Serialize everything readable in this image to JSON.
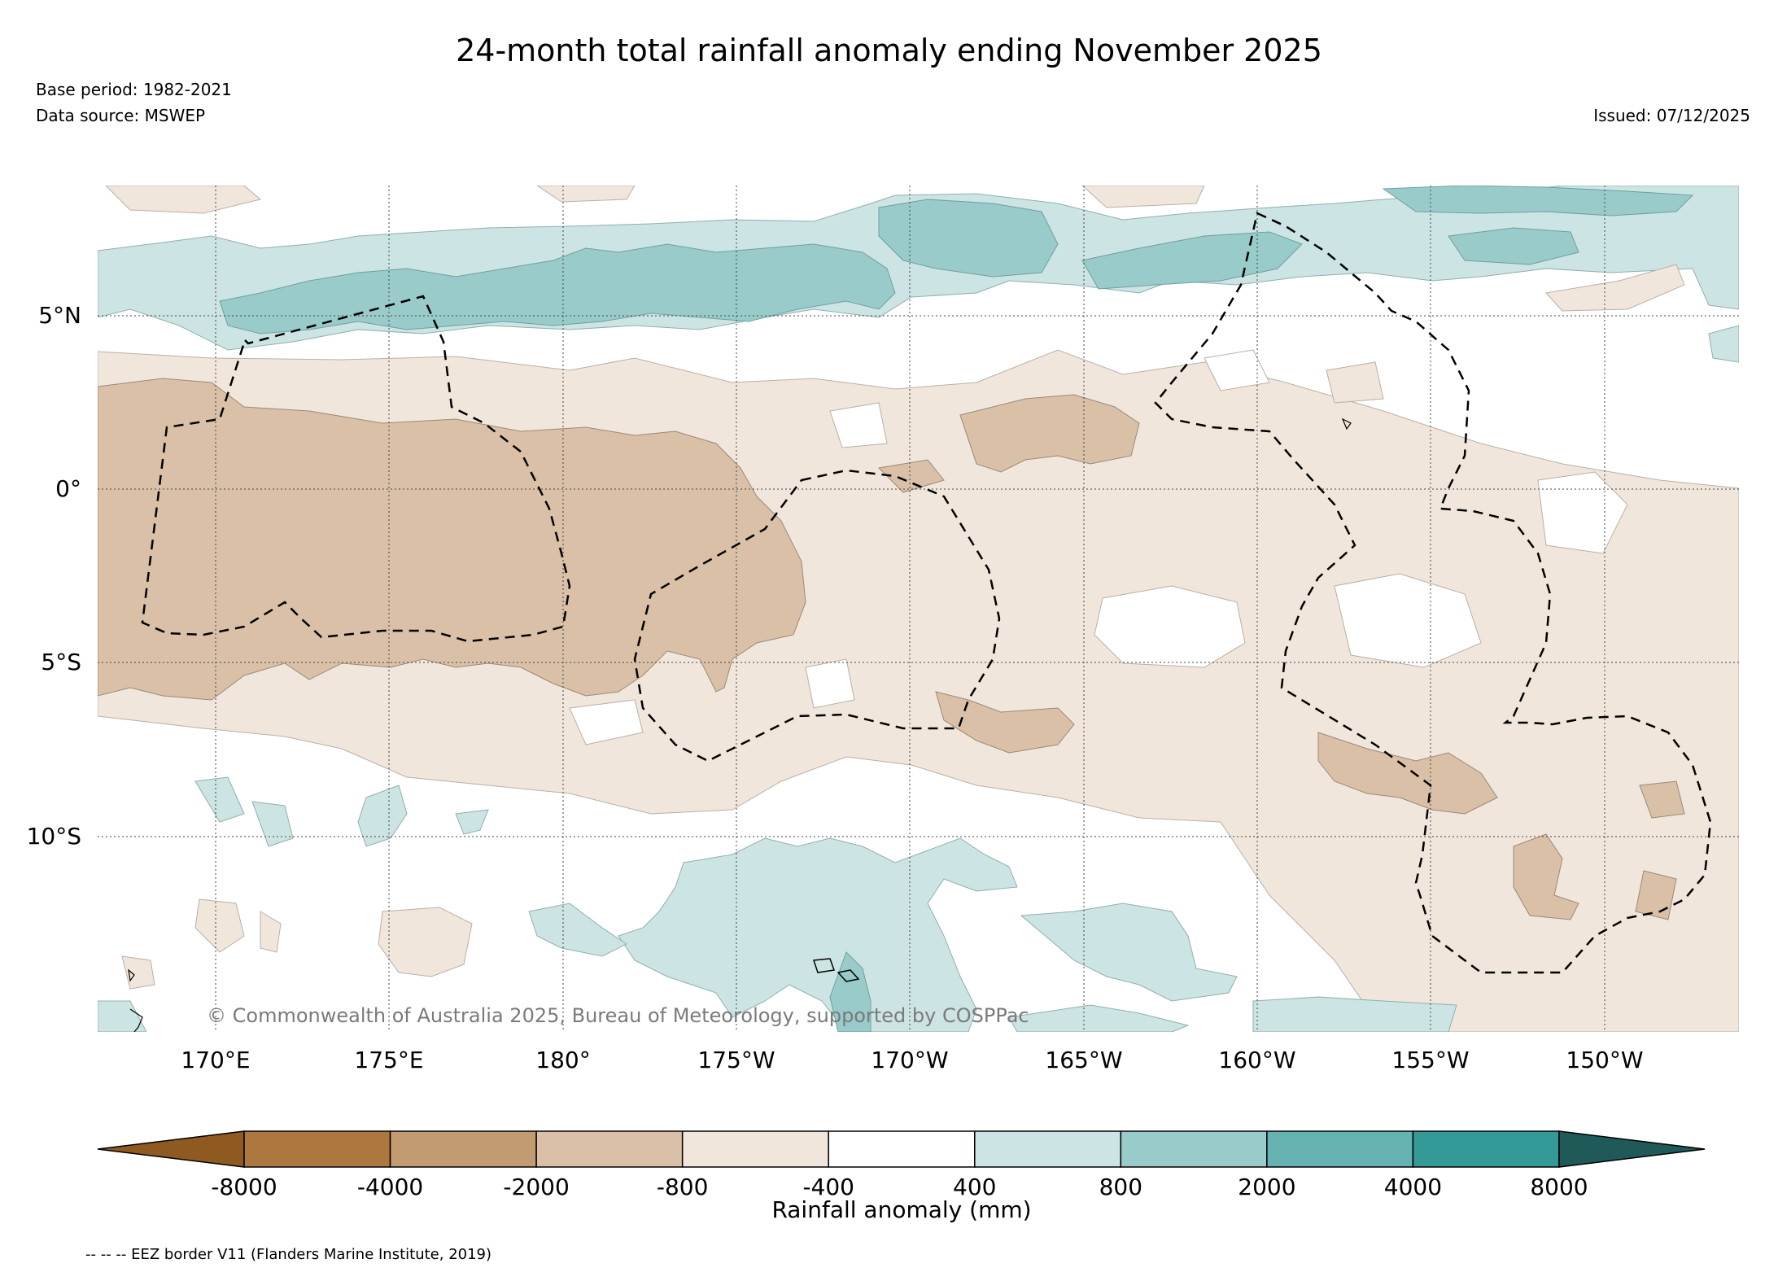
{
  "header": {
    "title": "24-month total rainfall anomaly ending November 2025",
    "base_period": "Base period: 1982-2021",
    "data_source": "Data source: MSWEP",
    "issued": "Issued: 07/12/2025"
  },
  "map": {
    "lat_labels": [
      "5°N",
      "0°",
      "5°S",
      "10°S"
    ],
    "lon_labels": [
      "170°E",
      "175°E",
      "180°",
      "175°W",
      "170°W",
      "165°W",
      "160°W",
      "155°W",
      "150°W"
    ],
    "copyright": "© Commonwealth of Australia 2025, Bureau of Meteorology, supported by COSPPac",
    "colors": {
      "dry_strong": "#d9c0a6",
      "dry_mild": "#f0e6dc",
      "wet_mild": "#cce4e3",
      "wet_moderate": "#98cbca",
      "eez_border": "#000000"
    }
  },
  "colorbar": {
    "label": "Rainfall anomaly (mm)",
    "ticks": [
      "-8000",
      "-4000",
      "-2000",
      "-800",
      "-400",
      "400",
      "800",
      "2000",
      "4000",
      "8000"
    ],
    "colors": [
      "#8f5a22",
      "#ad7840",
      "#c29b70",
      "#d9c0a6",
      "#f0e6dc",
      "#ffffff",
      "#cce4e3",
      "#98cbca",
      "#64b2b1",
      "#349a97",
      "#27706e",
      "#1f5a58"
    ]
  },
  "legend": {
    "eez_note": "-- -- -- EEZ border V11 (Flanders Marine Institute, 2019)"
  }
}
